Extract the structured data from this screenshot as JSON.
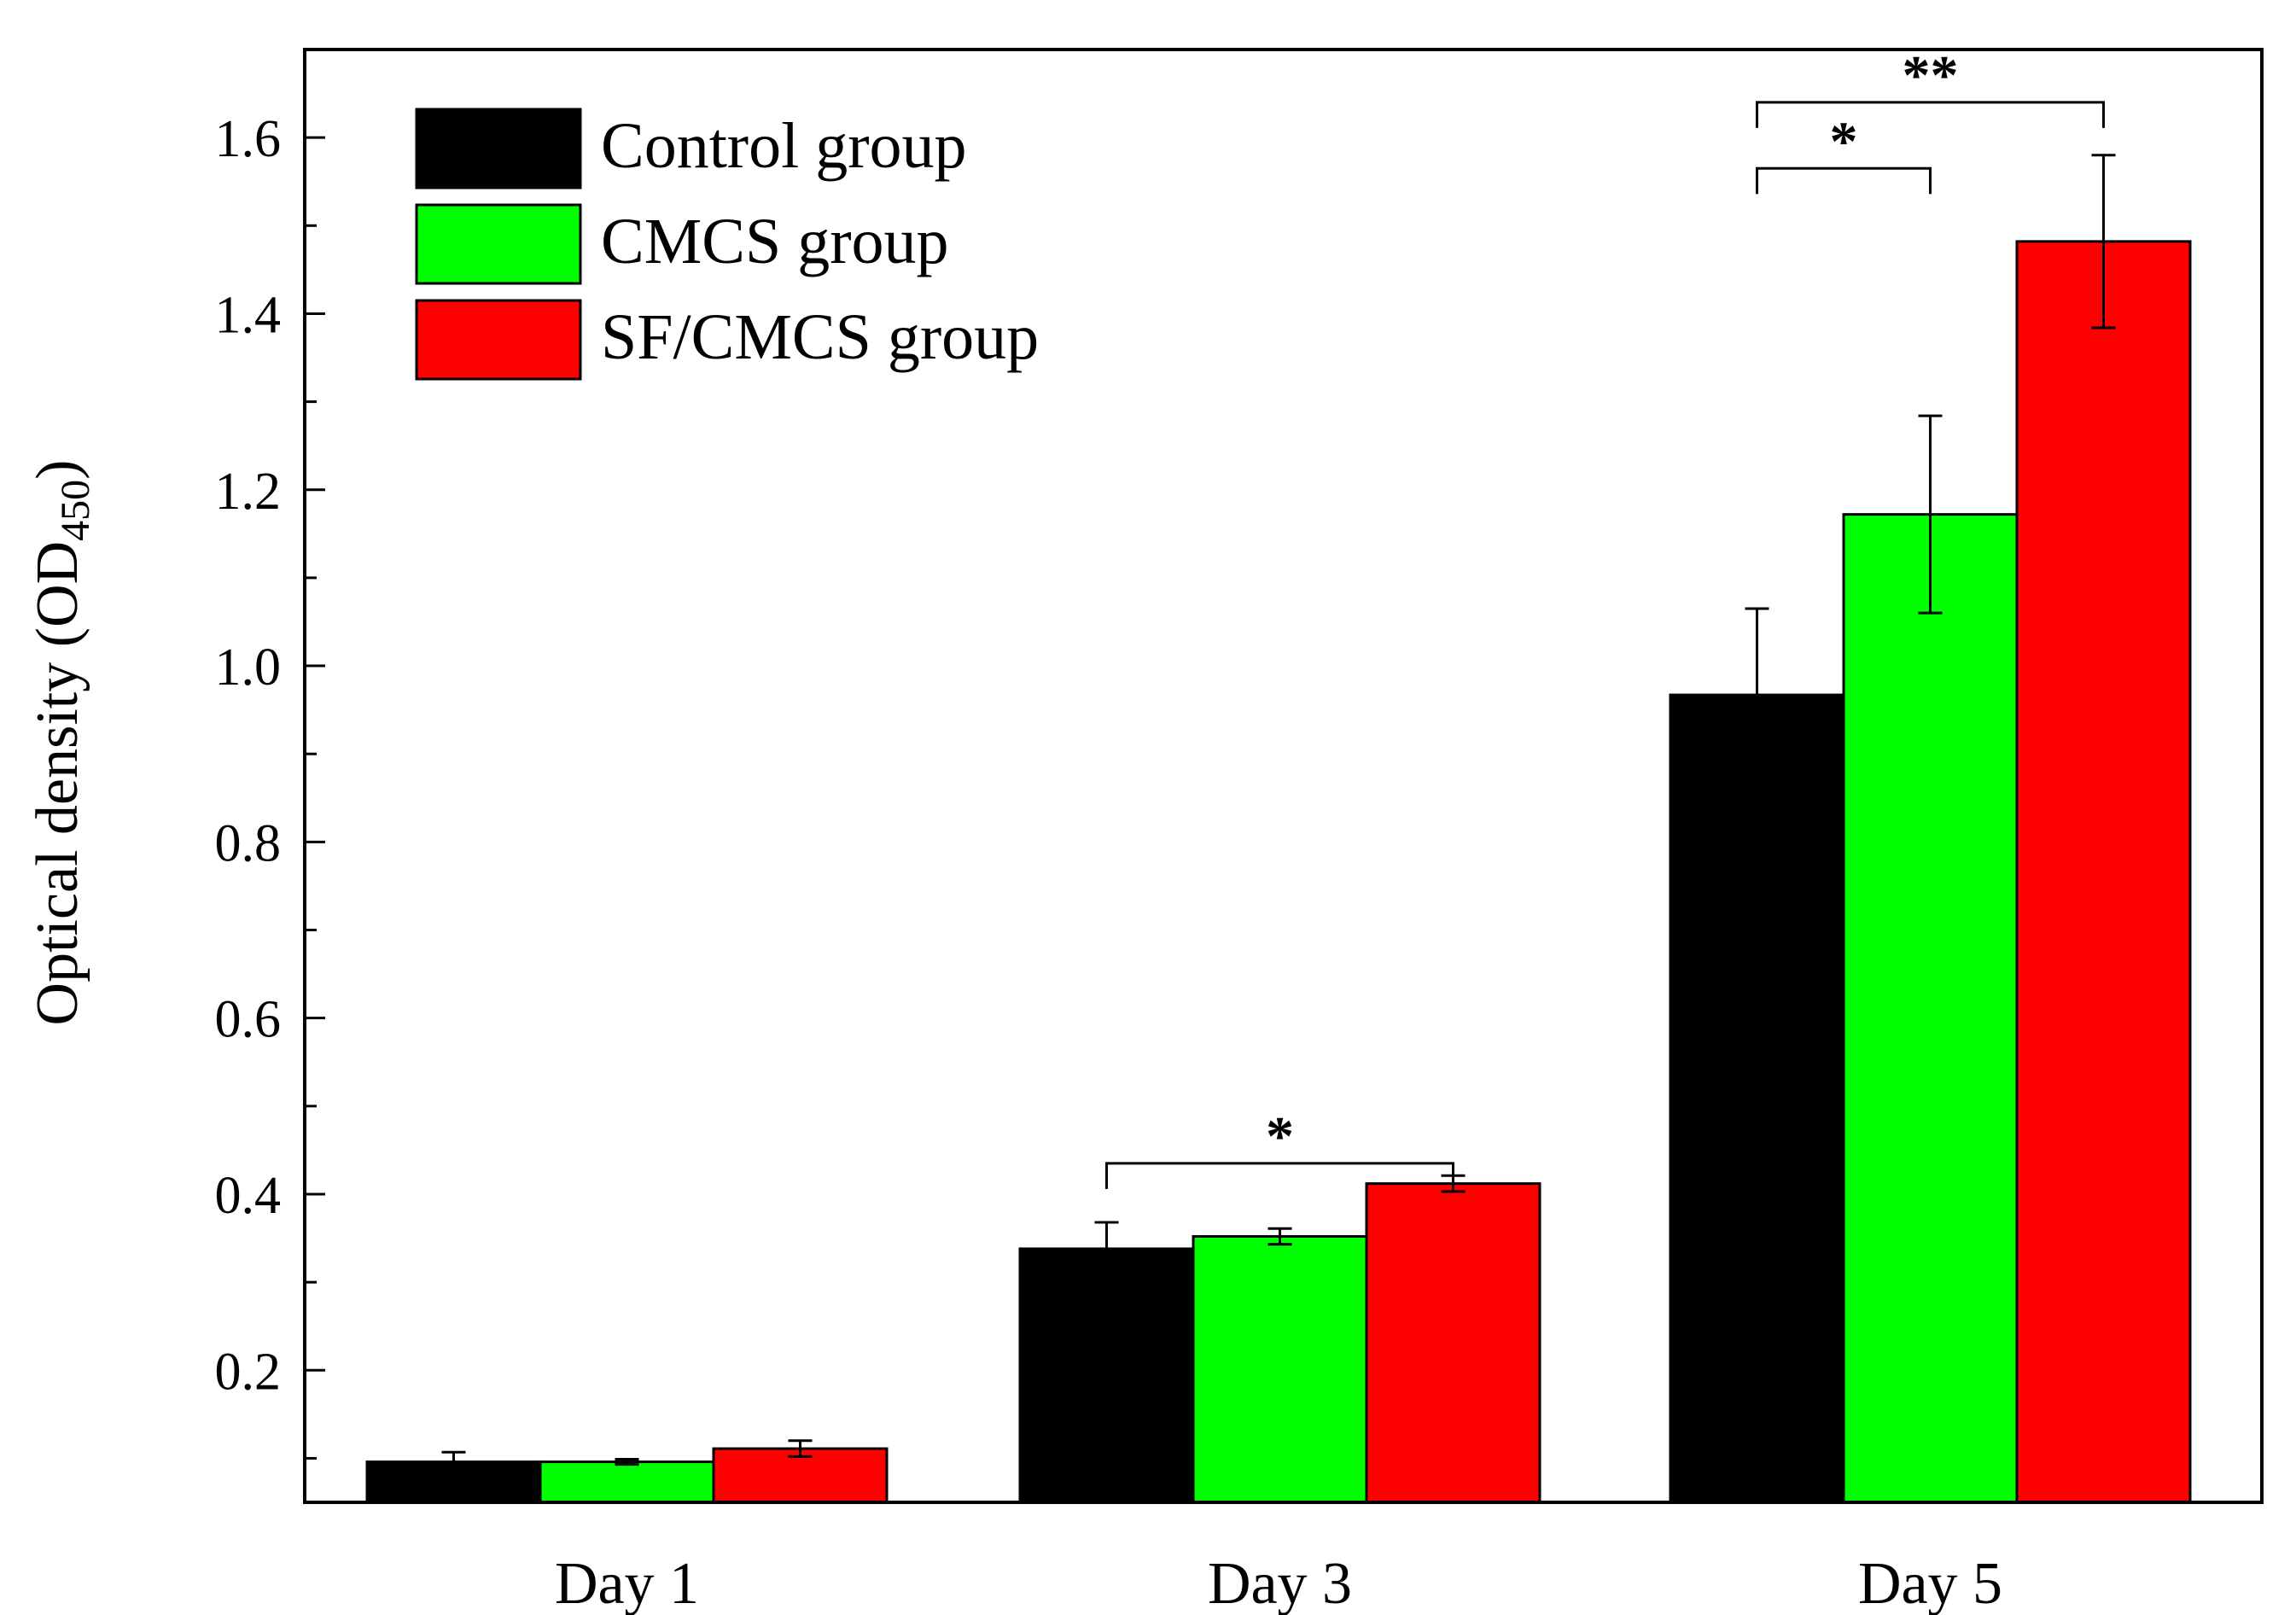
{
  "chart_data": {
    "type": "bar",
    "title": "",
    "xlabel": "",
    "ylabel": "Optical density (OD",
    "ylabel_subscript": "450",
    "ylabel_close": ")",
    "ylim": [
      0.05,
      1.7
    ],
    "yticks": [
      0.2,
      0.4,
      0.6,
      0.8,
      1.0,
      1.2,
      1.4,
      1.6
    ],
    "ytick_labels": [
      "0.2",
      "0.4",
      "0.6",
      "0.8",
      "1.0",
      "1.2",
      "1.4",
      "1.6"
    ],
    "yminor_ticks": [
      0.1,
      0.3,
      0.5,
      0.7,
      0.9,
      1.1,
      1.3,
      1.5
    ],
    "categories": [
      "Day 1",
      "Day 3",
      "Day 5"
    ],
    "legend_position": "top-left",
    "series": [
      {
        "name": "Control group",
        "color": "#000000",
        "values": [
          0.096,
          0.338,
          0.967
        ],
        "errors": [
          0.011,
          0.03,
          0.098
        ]
      },
      {
        "name": "CMCS group",
        "color": "#00ff00",
        "values": [
          0.096,
          0.352,
          1.172
        ],
        "errors": [
          0.003,
          0.009,
          0.112
        ]
      },
      {
        "name": "SF/CMCS group",
        "color": "#ff0000",
        "values": [
          0.111,
          0.412,
          1.482
        ],
        "errors": [
          0.009,
          0.009,
          0.098
        ]
      }
    ],
    "annotations": [
      {
        "label": "*",
        "category": 1,
        "from_series": 0,
        "to_series": 2,
        "y": 0.435
      },
      {
        "label": "*",
        "category": 2,
        "from_series": 0,
        "to_series": 1,
        "y": 1.565
      },
      {
        "label": "**",
        "category": 2,
        "from_series": 0,
        "to_series": 2,
        "y": 1.64
      }
    ]
  }
}
